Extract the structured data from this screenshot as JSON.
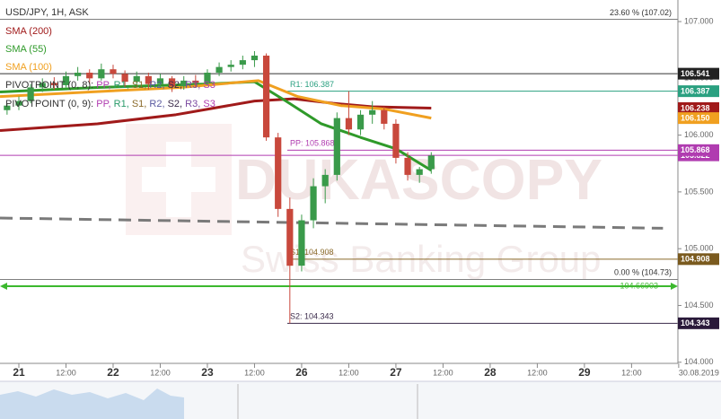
{
  "chart_data": {
    "type": "candlestick",
    "title": "USD/JPY, 1H, ASK",
    "x": [
      -3,
      0,
      3,
      6,
      9,
      12,
      15,
      18,
      21,
      24,
      27,
      30,
      33,
      36,
      39,
      42,
      45,
      48,
      51,
      54,
      57,
      60,
      63,
      66,
      69,
      72,
      75,
      78,
      81,
      84,
      87,
      90,
      93,
      96,
      99,
      102,
      105
    ],
    "open": [
      106.22,
      106.26,
      106.3,
      106.42,
      106.46,
      106.44,
      106.52,
      106.55,
      106.5,
      106.58,
      106.54,
      106.47,
      106.52,
      106.45,
      106.5,
      106.43,
      106.48,
      106.46,
      106.55,
      106.6,
      106.62,
      106.66,
      106.7,
      105.98,
      105.35,
      104.85,
      105.25,
      105.55,
      105.65,
      106.15,
      106.05,
      106.18,
      106.22,
      106.1,
      105.8,
      105.65,
      105.7
    ],
    "high": [
      106.28,
      106.34,
      106.45,
      106.5,
      106.51,
      106.56,
      106.6,
      106.58,
      106.63,
      106.62,
      106.57,
      106.56,
      106.55,
      106.54,
      106.52,
      106.52,
      106.53,
      106.58,
      106.64,
      106.66,
      106.7,
      106.74,
      106.72,
      106.02,
      105.45,
      105.3,
      105.62,
      105.7,
      106.2,
      106.387,
      106.22,
      106.3,
      106.25,
      106.14,
      105.85,
      105.72,
      105.85
    ],
    "low": [
      106.18,
      106.22,
      106.28,
      106.38,
      106.4,
      106.42,
      106.48,
      106.45,
      106.48,
      106.5,
      106.42,
      106.44,
      106.4,
      106.42,
      106.38,
      106.4,
      106.42,
      106.44,
      106.52,
      106.56,
      106.58,
      106.6,
      105.95,
      105.28,
      104.343,
      104.8,
      105.18,
      105.4,
      105.6,
      106.0,
      106.0,
      106.1,
      106.05,
      105.75,
      105.6,
      105.58,
      105.66
    ],
    "close": [
      106.26,
      106.3,
      106.42,
      106.46,
      106.44,
      106.52,
      106.55,
      106.5,
      106.58,
      106.54,
      106.47,
      106.52,
      106.45,
      106.5,
      106.43,
      106.48,
      106.46,
      106.55,
      106.6,
      106.62,
      106.66,
      106.7,
      105.98,
      105.35,
      104.85,
      105.25,
      105.55,
      105.65,
      106.15,
      106.05,
      106.18,
      106.22,
      106.1,
      105.8,
      105.65,
      105.7,
      105.82
    ],
    "up_color": "#3a9a4a",
    "down_color": "#c8483c",
    "xlim": [
      -4.8,
      167.8
    ],
    "xticks": [
      {
        "value": 0,
        "label": "21"
      },
      {
        "value": 12,
        "label": "12:00"
      },
      {
        "value": 24,
        "label": "22"
      },
      {
        "value": 36,
        "label": "12:00"
      },
      {
        "value": 48,
        "label": "23"
      },
      {
        "value": 60,
        "label": "12:00"
      },
      {
        "value": 72,
        "label": "26"
      },
      {
        "value": 84,
        "label": "12:00"
      },
      {
        "value": 96,
        "label": "27"
      },
      {
        "value": 108,
        "label": "12:00"
      },
      {
        "value": 120,
        "label": "28"
      },
      {
        "value": 132,
        "label": "12:00"
      },
      {
        "value": 144,
        "label": "29"
      },
      {
        "value": 156,
        "label": "12:00"
      },
      {
        "value": 168,
        "label": "30.08.2019"
      }
    ],
    "ylim": [
      103.99,
      107.19
    ],
    "yticks": [
      {
        "value": 107,
        "label": "107.000"
      },
      {
        "value": 106.5,
        "label": "106.500"
      },
      {
        "value": 106,
        "label": "106.000"
      },
      {
        "value": 105.5,
        "label": "105.500"
      },
      {
        "value": 105,
        "label": "105.000"
      },
      {
        "value": 104.5,
        "label": "104.500"
      },
      {
        "value": 104,
        "label": "104.000"
      }
    ],
    "indicators": [
      {
        "name": "SMA (200)",
        "color": "#a01a1a",
        "x": [
          -4.8,
          20,
          40,
          60,
          70,
          80,
          90,
          105
        ],
        "values": [
          106.04,
          106.1,
          106.18,
          106.3,
          106.32,
          106.28,
          106.25,
          106.238
        ]
      },
      {
        "name": "SMA (55)",
        "color": "#2f9a2a",
        "x": [
          -4.8,
          20,
          48,
          60,
          68,
          77,
          87,
          96,
          105
        ],
        "values": [
          106.38,
          106.42,
          106.45,
          106.47,
          106.3,
          106.1,
          105.98,
          105.88,
          105.69
        ]
      },
      {
        "name": "SMA (100)",
        "color": "#f0a020",
        "x": [
          -4.8,
          41,
          61,
          71,
          82,
          93,
          105
        ],
        "values": [
          106.34,
          106.42,
          106.48,
          106.34,
          106.26,
          106.23,
          106.15
        ]
      }
    ],
    "pivot_legends": [
      [
        {
          "text": "PIVOTPOINT (0, 8): ",
          "color": "#333333"
        },
        {
          "text": "PP, ",
          "color": "#b03cb0"
        },
        {
          "text": "R1, ",
          "color": "#2a9a6a"
        },
        {
          "text": "S1, ",
          "color": "#8a6a2a"
        },
        {
          "text": "R2, ",
          "color": "#5a5aa0"
        },
        {
          "text": "S2, ",
          "color": "#3a2a4a"
        },
        {
          "text": "R3, ",
          "color": "#7a4aa0"
        },
        {
          "text": "S3",
          "color": "#b03cb0"
        }
      ],
      [
        {
          "text": "PIVOTPOINT (0, 9): ",
          "color": "#333333"
        },
        {
          "text": "PP, ",
          "color": "#b03cb0"
        },
        {
          "text": "R1, ",
          "color": "#2a9a6a"
        },
        {
          "text": "S1, ",
          "color": "#8a6a2a"
        },
        {
          "text": "R2, ",
          "color": "#5a5aa0"
        },
        {
          "text": "S2, ",
          "color": "#3a2a4a"
        },
        {
          "text": "R3, ",
          "color": "#7a4aa0"
        },
        {
          "text": "S3",
          "color": "#b03cb0"
        }
      ]
    ],
    "trendline": {
      "color": "#7a7a7a",
      "x": [
        -4.8,
        164
      ],
      "values": [
        105.27,
        105.18
      ]
    },
    "levels": [
      {
        "value": 106.541,
        "color": "#333333"
      },
      {
        "name": "R1: 106.387",
        "value": 106.387,
        "color": "#2aa080"
      },
      {
        "value": 105.822,
        "color": "#b03cb0"
      },
      {
        "name": "PP: 105.868",
        "value": 105.868,
        "color": "#b03cb0"
      },
      {
        "name": "S1: 104.908",
        "value": 104.908,
        "color": "#8a6a2a"
      },
      {
        "name": "S2: 104.343",
        "value": 104.343,
        "color": "#3a2a4a"
      }
    ],
    "fibonacci": [
      {
        "label": "23.60 % (107.02)",
        "value": 107.02
      },
      {
        "label": "0.00 % (104.73)",
        "value": 104.73
      }
    ],
    "horizontal_line": {
      "label": "104.66903",
      "value": 104.66903,
      "color": "#3cb82e"
    },
    "price_tags": [
      {
        "value": 106.541,
        "label": "106.541",
        "color": "#222222"
      },
      {
        "value": 106.387,
        "label": "106.387",
        "color": "#2aa080"
      },
      {
        "value": 106.238,
        "label": "106.238",
        "color": "#a01a1a"
      },
      {
        "value": 106.15,
        "label": "106.150",
        "color": "#f0a020"
      },
      {
        "value": 105.822,
        "label": "105.822",
        "color": "#b03cb0"
      },
      {
        "value": 105.868,
        "label": "105.868",
        "color": "#b03cb0"
      },
      {
        "value": 104.908,
        "label": "104.908",
        "color": "#7a5a1e"
      },
      {
        "value": 104.343,
        "label": "104.343",
        "color": "#2a1a3a"
      }
    ],
    "watermark": [
      "DUKASCOPY",
      "Swiss Banking Group"
    ]
  }
}
